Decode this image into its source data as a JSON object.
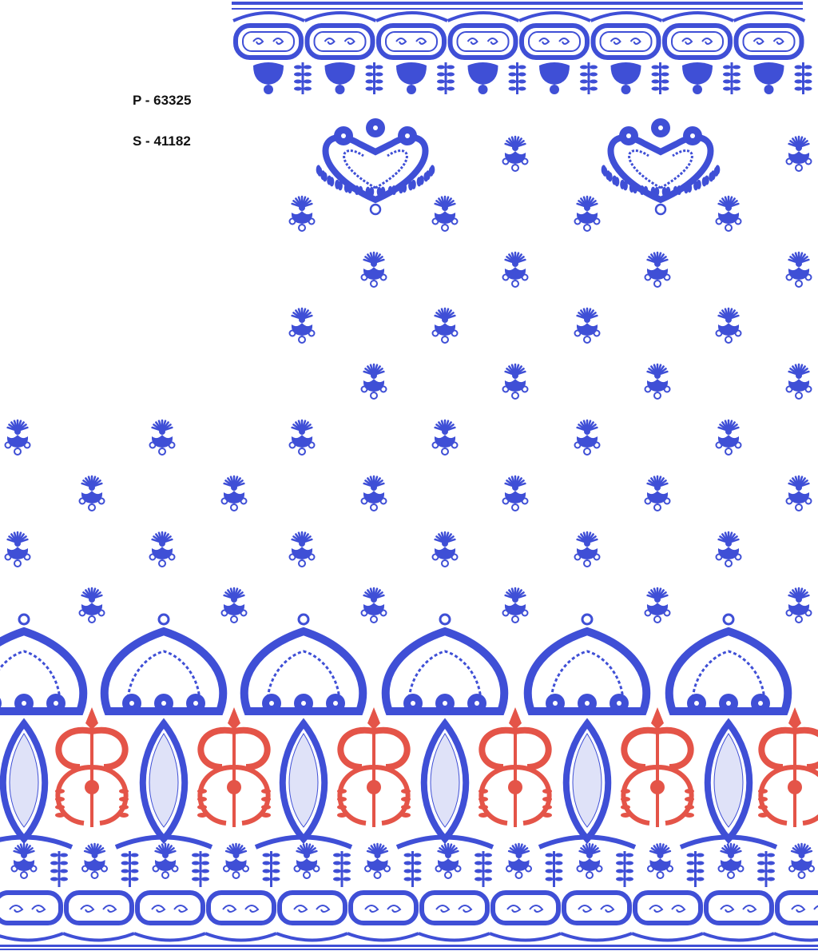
{
  "labels": {
    "pattern_code": "P - 63325",
    "stitch_code": "S - 41182"
  },
  "colors": {
    "background": "#ffffff",
    "thread_blue": "#3f4fd6",
    "thread_red": "#e45448",
    "text": "#111111"
  },
  "elements": {
    "top_border": "embroidered-scalloped-border",
    "heart_motifs": "embroidered-heart-medallion",
    "butti": "embroidered-small-flower-butti",
    "bottom_border": "embroidered-paisley-arch-border"
  }
}
